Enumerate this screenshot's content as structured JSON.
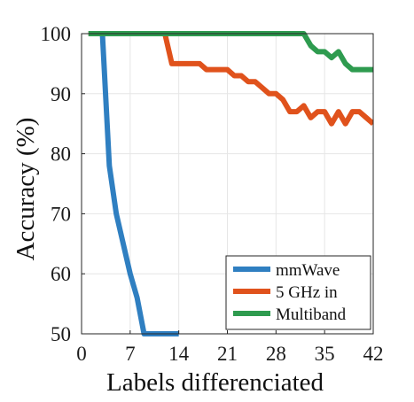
{
  "chart_data": {
    "type": "line",
    "title": "",
    "xlabel": "Labels differenciated",
    "ylabel": "Accuracy (%)",
    "xlim": [
      0,
      42
    ],
    "ylim": [
      50,
      100
    ],
    "xticks": [
      0,
      7,
      14,
      21,
      28,
      35,
      42
    ],
    "xtick_labels": [
      "0",
      "7",
      "14",
      "21",
      "28",
      "35",
      "42"
    ],
    "yticks": [
      50,
      60,
      70,
      80,
      90,
      100
    ],
    "ytick_labels": [
      "50",
      "60",
      "70",
      "80",
      "90",
      "100"
    ],
    "grid": true,
    "legend_position": "bottom-right",
    "series": [
      {
        "name": "mmWave",
        "color": "#2f7fc1",
        "x": [
          1,
          2,
          3,
          4,
          5,
          6,
          7,
          8,
          9,
          10,
          11,
          12,
          13,
          14
        ],
        "y": [
          100,
          100,
          100,
          78,
          70,
          65,
          60,
          56,
          50,
          50,
          50,
          50,
          50,
          50
        ]
      },
      {
        "name": "5 GHz in",
        "color": "#e0521c",
        "x": [
          1,
          2,
          3,
          4,
          5,
          6,
          7,
          8,
          9,
          10,
          11,
          12,
          13,
          14,
          15,
          16,
          17,
          18,
          19,
          20,
          21,
          22,
          23,
          24,
          25,
          26,
          27,
          28,
          29,
          30,
          31,
          32,
          33,
          34,
          35,
          36,
          37,
          38,
          39,
          40,
          41,
          42
        ],
        "y": [
          100,
          100,
          100,
          100,
          100,
          100,
          100,
          100,
          100,
          100,
          100,
          100,
          95,
          95,
          95,
          95,
          95,
          94,
          94,
          94,
          94,
          93,
          93,
          92,
          92,
          91,
          90,
          90,
          89,
          87,
          87,
          88,
          86,
          87,
          87,
          85,
          87,
          85,
          87,
          87,
          86,
          85
        ]
      },
      {
        "name": "Multiband",
        "color": "#2e9b4f",
        "x": [
          1,
          2,
          3,
          4,
          5,
          6,
          7,
          8,
          9,
          10,
          11,
          12,
          13,
          14,
          15,
          16,
          17,
          18,
          19,
          20,
          21,
          22,
          23,
          24,
          25,
          26,
          27,
          28,
          29,
          30,
          31,
          32,
          33,
          34,
          35,
          36,
          37,
          38,
          39,
          40,
          41,
          42
        ],
        "y": [
          100,
          100,
          100,
          100,
          100,
          100,
          100,
          100,
          100,
          100,
          100,
          100,
          100,
          100,
          100,
          100,
          100,
          100,
          100,
          100,
          100,
          100,
          100,
          100,
          100,
          100,
          100,
          100,
          100,
          100,
          100,
          100,
          98,
          97,
          97,
          96,
          97,
          95,
          94,
          94,
          94,
          94
        ]
      }
    ]
  }
}
